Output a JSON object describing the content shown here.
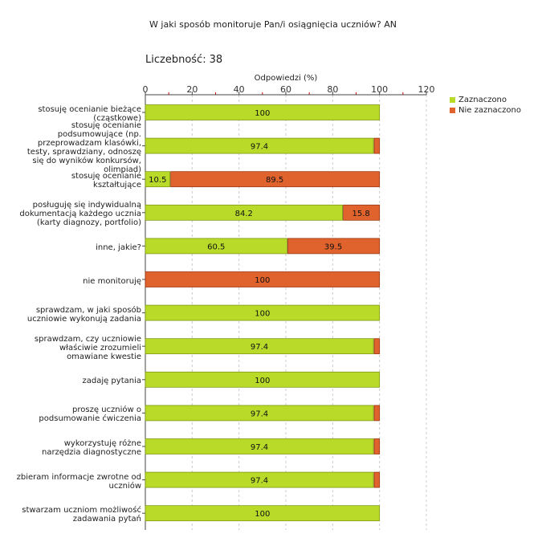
{
  "title": "W jaki sposób monitoruje Pan/i osiągnięcia uczniów?  AN",
  "count_label": "Liczebność:",
  "count_value": "38",
  "colors": {
    "selected": "#bada2a",
    "not_selected": "#e0622c",
    "grid": "#cccccc",
    "axis": "#444444",
    "tick_red": "#cc0000"
  },
  "chart_data": {
    "type": "bar",
    "orientation": "horizontal",
    "stacked": true,
    "xlabel": "Odpowiedzi (%)",
    "xlim": [
      0,
      120
    ],
    "xticks": [
      0,
      20,
      40,
      60,
      80,
      100,
      120
    ],
    "grid": true,
    "legend_position": "top-right",
    "categories": [
      "stosuję ocenianie bieżące\n(cząstkowe)",
      "stosuję ocenianie\npodsumowujące (np.\nprzeprowadzam klasówki,\ntesty, sprawdziany, odnoszę\nsię do wyników konkursów,\nolimpiad)",
      "stosuję ocenianie\nkształtujące",
      "posługuję się indywidualną\ndokumentacją każdego ucznia\n(karty diagnozy, portfolio)",
      "inne, jakie?",
      "nie monitoruję",
      "sprawdzam, w jaki sposób\nuczniowie wykonują zadania",
      "sprawdzam, czy uczniowie\nwłaściwie zrozumieli\nomawiane kwestie",
      "zadaję pytania",
      "proszę uczniów o\npodsumowanie ćwiczenia",
      "wykorzystuję różne\nnarzędzia diagnostyczne",
      "zbieram informacje zwrotne od\nuczniów",
      "stwarzam uczniom możliwość\nzadawania pytań"
    ],
    "series": [
      {
        "name": "Zaznaczono",
        "values": [
          100,
          97.4,
          10.5,
          84.2,
          60.5,
          0,
          100,
          97.4,
          100,
          97.4,
          97.4,
          97.4,
          100
        ],
        "labels": [
          "100",
          "97.4",
          "10.5",
          "84.2",
          "60.5",
          "",
          "100",
          "97.4",
          "100",
          "97.4",
          "97.4",
          "97.4",
          "100"
        ]
      },
      {
        "name": "Nie zaznaczono",
        "values": [
          0,
          2.6,
          89.5,
          15.8,
          39.5,
          100,
          0,
          2.6,
          0,
          2.6,
          2.6,
          2.6,
          0
        ],
        "labels": [
          "",
          "",
          "89.5",
          "15.8",
          "39.5",
          "100",
          "",
          "",
          "",
          "",
          "",
          "",
          ""
        ]
      }
    ]
  }
}
